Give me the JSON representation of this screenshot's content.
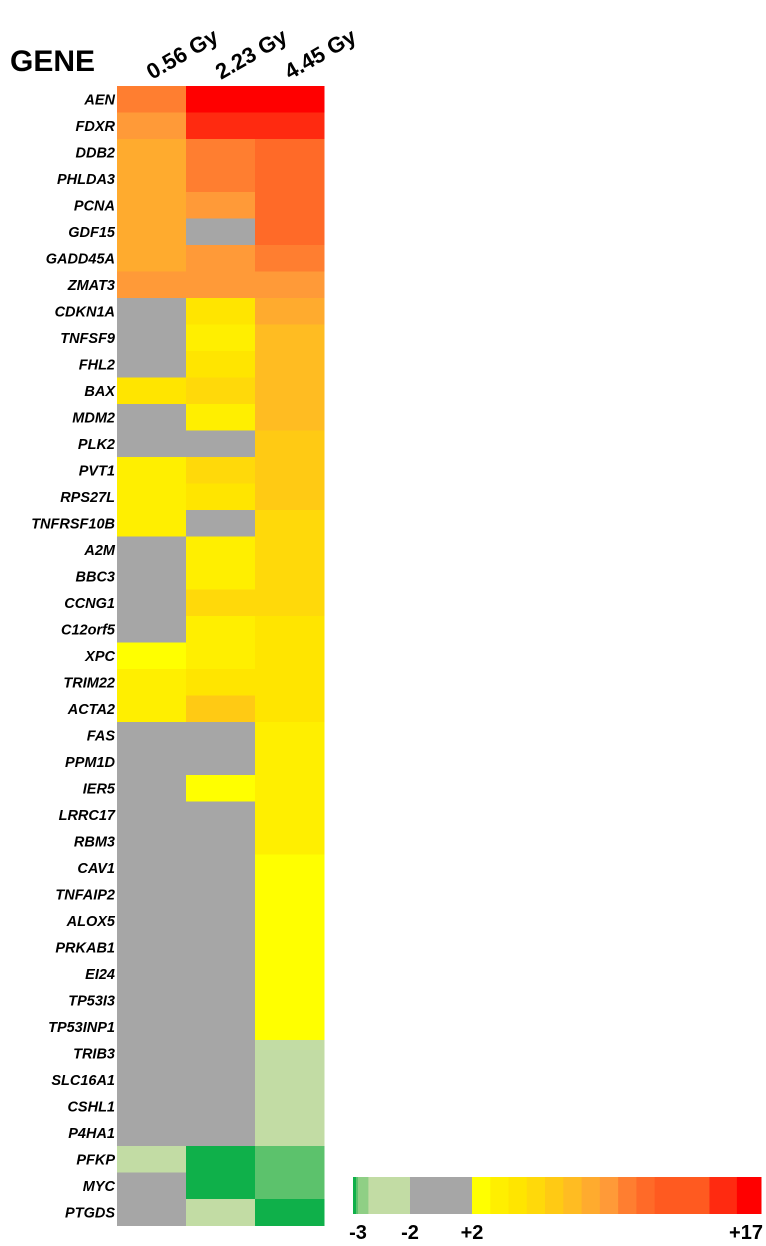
{
  "chart_data": {
    "type": "heatmap",
    "title": "",
    "row_header": "GENE",
    "columns": [
      "0.56 Gy",
      "2.23 Gy",
      "4.45 Gy"
    ],
    "rows": [
      "AEN",
      "FDXR",
      "DDB2",
      "PHLDA3",
      "PCNA",
      "GDF15",
      "GADD45A",
      "ZMAT3",
      "CDKN1A",
      "TNFSF9",
      "FHL2",
      "BAX",
      "MDM2",
      "PLK2",
      "PVT1",
      "RPS27L",
      "TNFRSF10B",
      "A2M",
      "BBC3",
      "CCNG1",
      "C12orf5",
      "XPC",
      "TRIM22",
      "ACTA2",
      "FAS",
      "PPM1D",
      "IER5",
      "LRRC17",
      "RBM3",
      "CAV1",
      "TNFAIP2",
      "ALOX5",
      "PRKAB1",
      "EI24",
      "TP53I3",
      "TP53INP1",
      "TRIB3",
      "SLC16A1",
      "CSHL1",
      "P4HA1",
      "PFKP",
      "MYC",
      "PTGDS"
    ],
    "values": [
      [
        11,
        17,
        17
      ],
      [
        10,
        16,
        16
      ],
      [
        9,
        11,
        12
      ],
      [
        9,
        11,
        12
      ],
      [
        9,
        10,
        12
      ],
      [
        9,
        null,
        12
      ],
      [
        9,
        10,
        11
      ],
      [
        10,
        10,
        10
      ],
      [
        null,
        5,
        9
      ],
      [
        null,
        4,
        8
      ],
      [
        null,
        5,
        8
      ],
      [
        5,
        6,
        8
      ],
      [
        null,
        4,
        8
      ],
      [
        null,
        null,
        7
      ],
      [
        4,
        6,
        7
      ],
      [
        4,
        5,
        7
      ],
      [
        4,
        null,
        6
      ],
      [
        null,
        4,
        6
      ],
      [
        null,
        4,
        6
      ],
      [
        null,
        6,
        6
      ],
      [
        null,
        4,
        5
      ],
      [
        2.5,
        4,
        5
      ],
      [
        4,
        5,
        5
      ],
      [
        4,
        7,
        5
      ],
      [
        null,
        null,
        4
      ],
      [
        null,
        null,
        4
      ],
      [
        null,
        2.5,
        4
      ],
      [
        null,
        null,
        3.5
      ],
      [
        null,
        null,
        3.5
      ],
      [
        null,
        null,
        3
      ],
      [
        null,
        null,
        3
      ],
      [
        null,
        null,
        3
      ],
      [
        null,
        null,
        2.5
      ],
      [
        null,
        null,
        2.5
      ],
      [
        null,
        null,
        2.5
      ],
      [
        null,
        null,
        2.5
      ],
      [
        null,
        null,
        -2.2
      ],
      [
        null,
        null,
        -2.3
      ],
      [
        null,
        null,
        -2.3
      ],
      [
        null,
        null,
        -2.4
      ],
      [
        -2.5,
        -3.3,
        -3.1
      ],
      [
        null,
        -3.5,
        -3.1
      ],
      [
        null,
        -2.7,
        -3.2
      ]
    ],
    "no_data_color": "#a6a6a6",
    "color_scale": {
      "ticks": [
        "-3",
        "-2",
        "+2",
        "+17"
      ],
      "segments": [
        {
          "from": -3.5,
          "to": -3.2,
          "color": "#0fb04a"
        },
        {
          "from": -3.2,
          "to": -3.0,
          "color": "#5cc26c"
        },
        {
          "from": -3.0,
          "to": -2.8,
          "color": "#8fcf85"
        },
        {
          "from": -2.8,
          "to": -2.0,
          "color": "#c2dca4"
        },
        {
          "from": -2.0,
          "to": 2.0,
          "color": "#a6a6a6"
        },
        {
          "from": 2.0,
          "to": 3.0,
          "color": "#ffff00"
        },
        {
          "from": 3.0,
          "to": 4.0,
          "color": "#ffef00"
        },
        {
          "from": 4.0,
          "to": 5.0,
          "color": "#ffe500"
        },
        {
          "from": 5.0,
          "to": 6.0,
          "color": "#ffd90a"
        },
        {
          "from": 6.0,
          "to": 7.0,
          "color": "#ffca14"
        },
        {
          "from": 7.0,
          "to": 8.0,
          "color": "#ffbc22"
        },
        {
          "from": 8.0,
          "to": 9.0,
          "color": "#ffab2e"
        },
        {
          "from": 9.0,
          "to": 10.0,
          "color": "#ff9a38"
        },
        {
          "from": 10.0,
          "to": 11.0,
          "color": "#ff7e30"
        },
        {
          "from": 11.0,
          "to": 12.0,
          "color": "#ff6a28"
        },
        {
          "from": 12.0,
          "to": 15.0,
          "color": "#ff5a20"
        },
        {
          "from": 15.0,
          "to": 16.5,
          "color": "#ff2a10"
        },
        {
          "from": 16.5,
          "to": 17.0,
          "color": "#ff0000"
        }
      ]
    }
  }
}
